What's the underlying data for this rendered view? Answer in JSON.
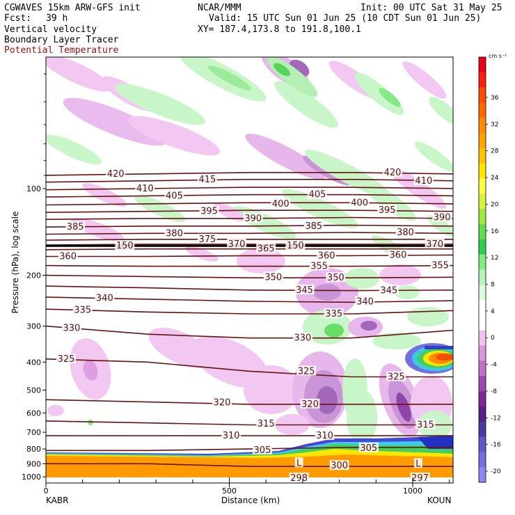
{
  "header": {
    "model": "CGWAVES 15km ARW-GFS init",
    "org": "NCAR/MMM",
    "init": "Init: 00 UTC Sat 31 May 25",
    "fcst_label": "Fcst:",
    "fcst_value": "39 h",
    "valid": "Valid: 15 UTC Sun 01 Jun 25 (10 CDT Sun 01 Jun 25)",
    "field1": "Vertical velocity",
    "field2": "Boundary Layer Tracer",
    "field3": "Potential Temperature",
    "xy": "XY= 187.4,173.8 to 191.8,100.1",
    "field3_color": "#a01010"
  },
  "chart_data": {
    "type": "cross-section",
    "xlabel": "Distance (km)",
    "ylabel": "Pressure (hPa), log scale",
    "x_ticks": [
      0,
      500,
      1000
    ],
    "x_range": [
      0,
      1110
    ],
    "y_ticks": [
      100,
      200,
      300,
      400,
      500,
      600,
      700,
      800,
      900,
      1000
    ],
    "y_range_hpa": [
      1050,
      35
    ],
    "y_scale": "log",
    "left_endpoint": "KABR",
    "right_endpoint": "KOUN",
    "colorbar": {
      "units": "cm s⁻¹",
      "labels": [
        36,
        32,
        28,
        24,
        20,
        16,
        12,
        8,
        4,
        0,
        -4,
        -8,
        -12,
        -16,
        -20
      ],
      "colors": [
        "#e8001a",
        "#f82010",
        "#ff4a00",
        "#ff6a00",
        "#ff8c00",
        "#ffa400",
        "#ffc400",
        "#ffe600",
        "#fffe40",
        "#d8f040",
        "#a0e840",
        "#60dc50",
        "#30cc50",
        "#80ee80",
        "#b8f4b8",
        "#dcfadc",
        "#ffffff",
        "#ffffff",
        "#eec4ee",
        "#dc96dc",
        "#c070c8",
        "#a048b0",
        "#7d2896",
        "#5a1e8a",
        "#4a3aa0",
        "#5a5ac8",
        "#7070e0",
        "#8888f0"
      ]
    },
    "theta_contours": [
      {
        "value": 420,
        "p": [
          90,
          89,
          88,
          88,
          89
        ]
      },
      {
        "value": 415,
        "p": [
          95,
          94,
          93,
          93,
          94
        ]
      },
      {
        "value": 410,
        "p": [
          101,
          100,
          99,
          99,
          100
        ]
      },
      {
        "value": 405,
        "p": [
          107,
          106,
          105,
          105,
          106
        ]
      },
      {
        "value": 400,
        "p": [
          114,
          113,
          112,
          112,
          113
        ]
      },
      {
        "value": 395,
        "p": [
          121,
          120,
          119,
          119,
          120
        ]
      },
      {
        "value": 390,
        "p": [
          128,
          127,
          127,
          126,
          127
        ]
      },
      {
        "value": 385,
        "p": [
          136,
          135,
          135,
          134,
          135
        ]
      },
      {
        "value": 380,
        "p": [
          144,
          143,
          143,
          142,
          143
        ]
      },
      {
        "value": 375,
        "p": [
          151,
          150,
          150,
          150,
          150
        ]
      },
      {
        "value": 370,
        "p": [
          157,
          156,
          156,
          156,
          156
        ]
      },
      {
        "value": 365,
        "p": [
          163,
          162,
          162,
          162,
          162
        ]
      },
      {
        "value": 360,
        "p": [
          172,
          172,
          171,
          171,
          170
        ]
      },
      {
        "value": 355,
        "p": [
          185,
          186,
          186,
          186,
          185
        ]
      },
      {
        "value": 350,
        "p": [
          200,
          202,
          204,
          204,
          203
        ]
      },
      {
        "value": 345,
        "p": [
          218,
          221,
          225,
          226,
          225
        ]
      },
      {
        "value": 340,
        "p": [
          238,
          242,
          246,
          248,
          245
        ]
      },
      {
        "value": 335,
        "p": [
          262,
          268,
          272,
          272,
          265
        ]
      },
      {
        "value": 330,
        "p": [
          300,
          320,
          330,
          330,
          310
        ]
      },
      {
        "value": 325,
        "p": [
          390,
          400,
          430,
          450,
          450
        ]
      },
      {
        "value": 320,
        "p": [
          540,
          550,
          560,
          560,
          560
        ]
      },
      {
        "value": 315,
        "p": [
          640,
          650,
          660,
          660,
          660
        ]
      },
      {
        "value": 310,
        "p": [
          720,
          720,
          720,
          720,
          720
        ]
      },
      {
        "value": 305,
        "p": [
          810,
          810,
          800,
          790,
          790
        ]
      },
      {
        "value": 300,
        "p": [
          900,
          900,
          920,
          920,
          920
        ]
      }
    ],
    "theta_labels": [
      {
        "text": "420",
        "x": 190,
        "p": 89
      },
      {
        "text": "415",
        "x": 440,
        "p": 93
      },
      {
        "text": "420",
        "x": 945,
        "p": 88
      },
      {
        "text": "410",
        "x": 1030,
        "p": 94
      },
      {
        "text": "410",
        "x": 270,
        "p": 100
      },
      {
        "text": "405",
        "x": 350,
        "p": 106
      },
      {
        "text": "405",
        "x": 740,
        "p": 105
      },
      {
        "text": "400",
        "x": 640,
        "p": 113
      },
      {
        "text": "400",
        "x": 855,
        "p": 112
      },
      {
        "text": "395",
        "x": 445,
        "p": 120
      },
      {
        "text": "395",
        "x": 930,
        "p": 119
      },
      {
        "text": "390",
        "x": 565,
        "p": 127
      },
      {
        "text": "390",
        "x": 1080,
        "p": 126
      },
      {
        "text": "385",
        "x": 80,
        "p": 136
      },
      {
        "text": "385",
        "x": 730,
        "p": 135
      },
      {
        "text": "380",
        "x": 350,
        "p": 143
      },
      {
        "text": "380",
        "x": 980,
        "p": 142
      },
      {
        "text": "375",
        "x": 440,
        "p": 150
      },
      {
        "text": "370",
        "x": 520,
        "p": 156
      },
      {
        "text": "370",
        "x": 1060,
        "p": 156
      },
      {
        "text": "365",
        "x": 600,
        "p": 162
      },
      {
        "text": "360",
        "x": 60,
        "p": 172
      },
      {
        "text": "360",
        "x": 765,
        "p": 171
      },
      {
        "text": "360",
        "x": 960,
        "p": 170
      },
      {
        "text": "355",
        "x": 745,
        "p": 186
      },
      {
        "text": "355",
        "x": 1075,
        "p": 185
      },
      {
        "text": "350",
        "x": 620,
        "p": 203
      },
      {
        "text": "350",
        "x": 790,
        "p": 204
      },
      {
        "text": "345",
        "x": 705,
        "p": 225
      },
      {
        "text": "345",
        "x": 935,
        "p": 226
      },
      {
        "text": "340",
        "x": 160,
        "p": 240
      },
      {
        "text": "340",
        "x": 870,
        "p": 247
      },
      {
        "text": "335",
        "x": 100,
        "p": 264
      },
      {
        "text": "335",
        "x": 785,
        "p": 272
      },
      {
        "text": "330",
        "x": 70,
        "p": 305
      },
      {
        "text": "330",
        "x": 700,
        "p": 330
      },
      {
        "text": "325",
        "x": 55,
        "p": 390
      },
      {
        "text": "325",
        "x": 710,
        "p": 430
      },
      {
        "text": "325",
        "x": 955,
        "p": 450
      },
      {
        "text": "320",
        "x": 480,
        "p": 552
      },
      {
        "text": "320",
        "x": 720,
        "p": 560
      },
      {
        "text": "315",
        "x": 600,
        "p": 655
      },
      {
        "text": "315",
        "x": 1035,
        "p": 660
      },
      {
        "text": "310",
        "x": 505,
        "p": 720
      },
      {
        "text": "310",
        "x": 760,
        "p": 720
      },
      {
        "text": "305",
        "x": 590,
        "p": 808
      },
      {
        "text": "305",
        "x": 880,
        "p": 795
      },
      {
        "text": "300",
        "x": 800,
        "p": 915
      },
      {
        "text": "298",
        "x": 690,
        "p": 1010
      },
      {
        "text": "297",
        "x": 1020,
        "p": 1010
      },
      {
        "text": "L",
        "x": 690,
        "p": 895
      },
      {
        "text": "L",
        "x": 1015,
        "p": 900
      },
      {
        "text": "150",
        "x": 215,
        "p": 158
      },
      {
        "text": "150",
        "x": 680,
        "p": 158
      }
    ],
    "tropopause_hpa": 158
  }
}
